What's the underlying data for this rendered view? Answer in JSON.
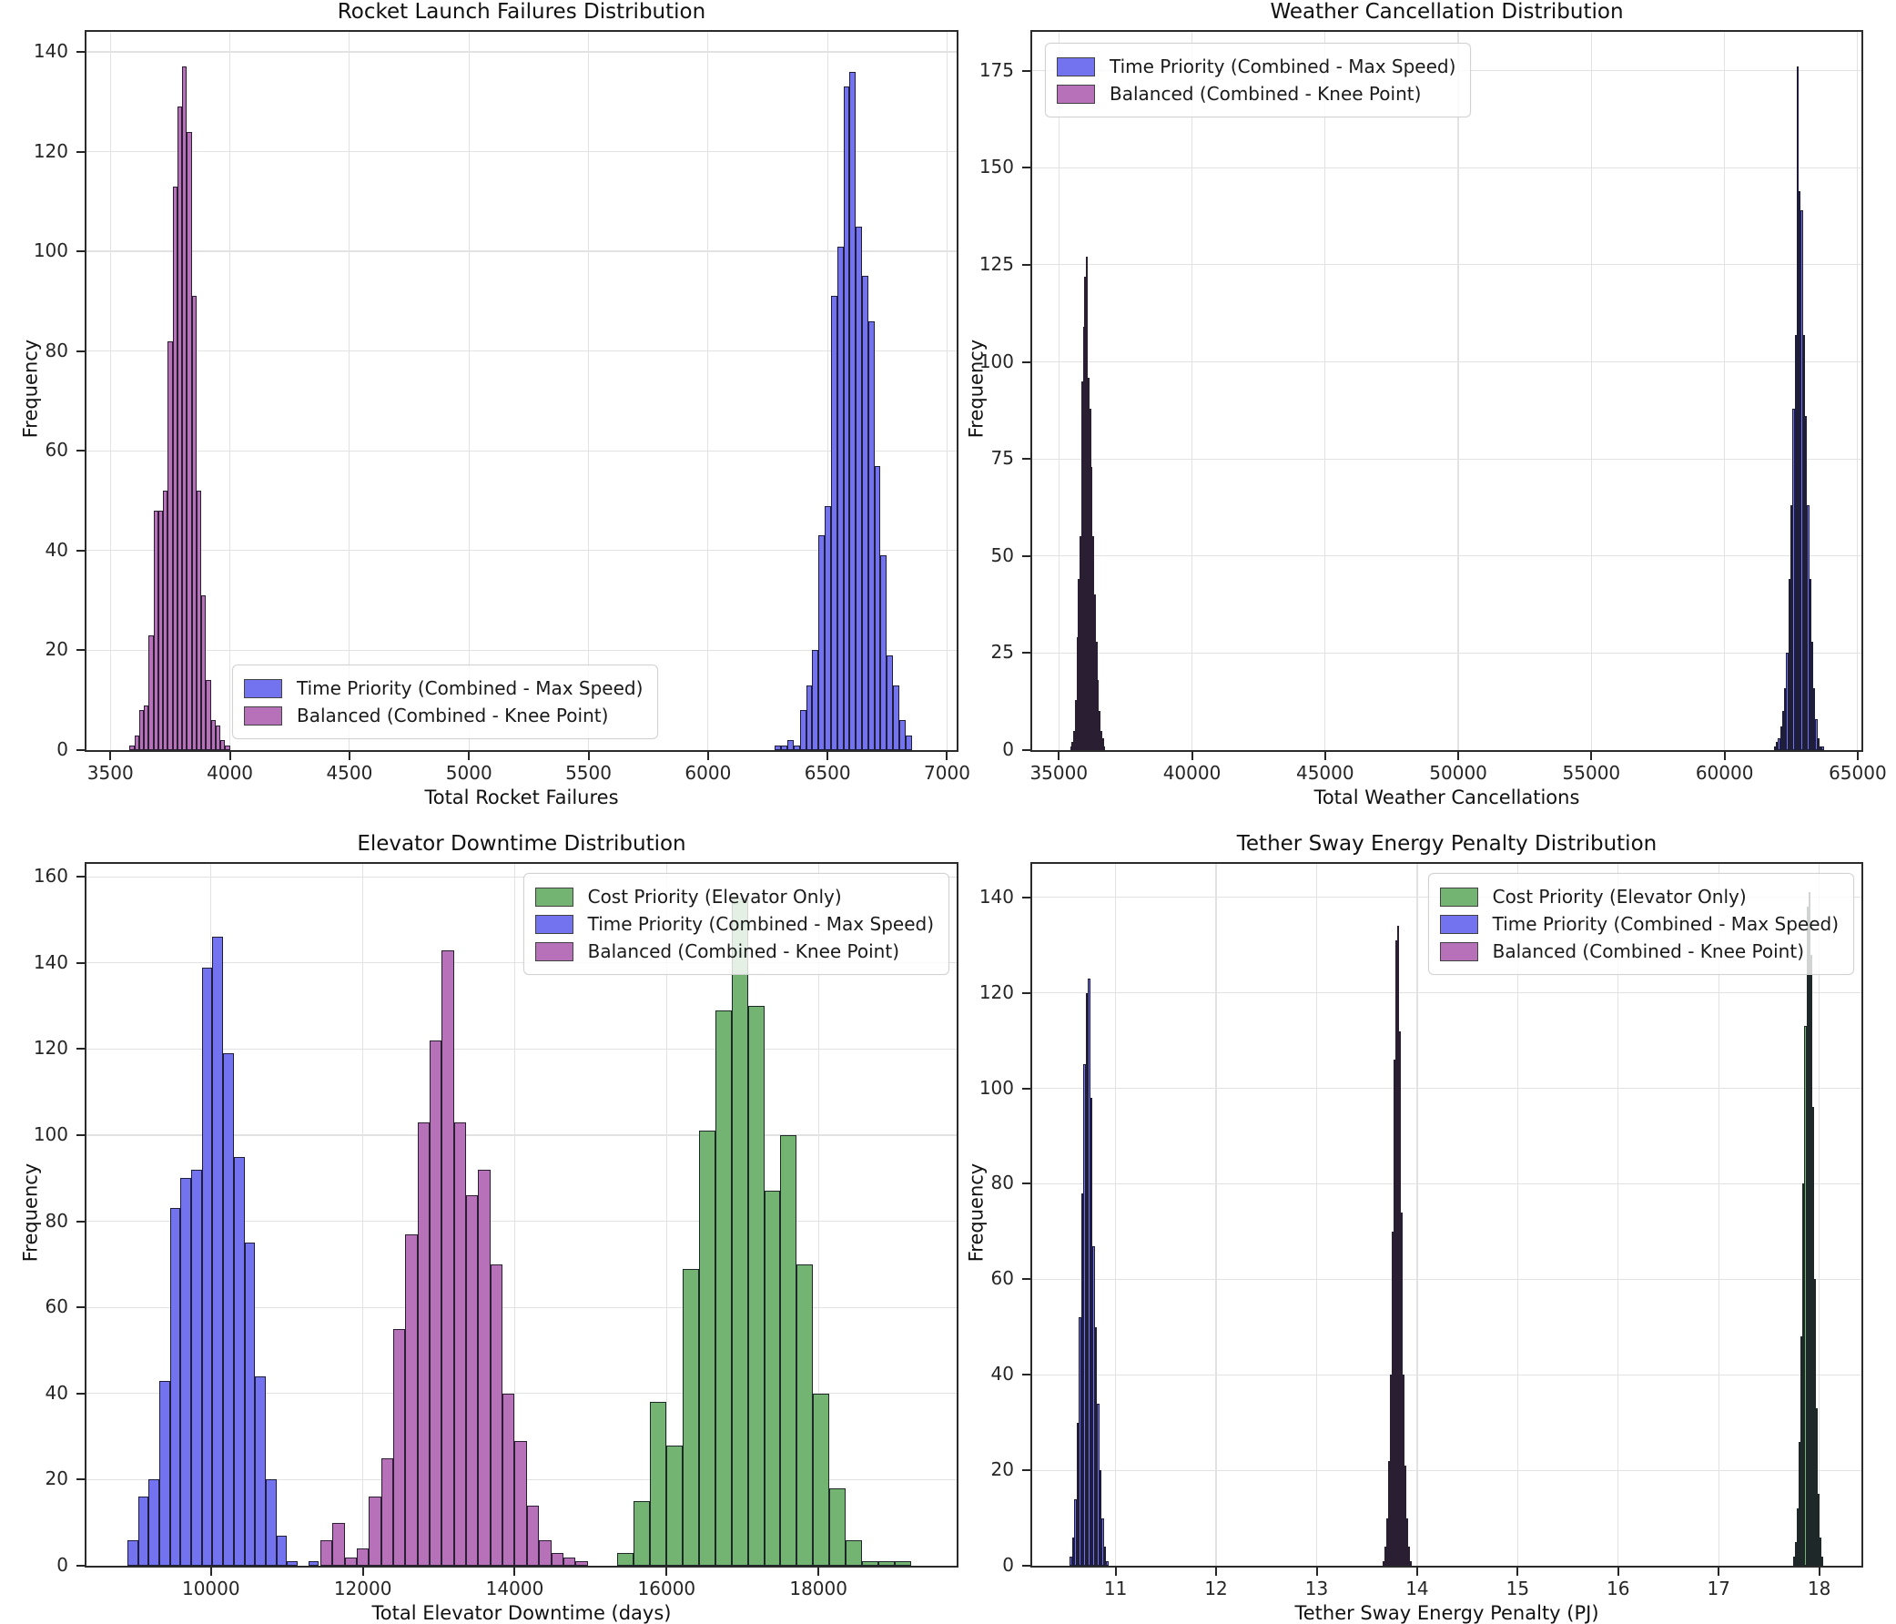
{
  "colors": {
    "blue": "#7372ef",
    "purple": "#b671b9",
    "green": "#73b473",
    "edge": "rgba(18,16,28,0.86)",
    "grid": "#e2e2e2",
    "spine": "#2b2b2b",
    "text": "#1a1a1a"
  },
  "chart_data": [
    {
      "type": "bar",
      "subtype": "histogram",
      "title": "Rocket Launch Failures Distribution",
      "xlabel": "Total Rocket Failures",
      "ylabel": "Frequency",
      "xlim": [
        3400,
        7040
      ],
      "ylim": [
        0,
        144
      ],
      "xticks": [
        3500,
        4000,
        4500,
        5000,
        5500,
        6000,
        6500,
        7000
      ],
      "yticks": [
        0,
        20,
        40,
        60,
        80,
        100,
        120,
        140
      ],
      "grid": true,
      "legend_position": "lower center",
      "legend": [
        {
          "label": "Time Priority (Combined - Max Speed)",
          "color": "blue"
        },
        {
          "label": "Balanced (Combined - Knee Point)",
          "color": "purple"
        }
      ],
      "series": [
        {
          "name": "Balanced (Combined - Knee Point)",
          "color": "purple",
          "bin_start": 3580,
          "bin_width": 20,
          "counts": [
            1,
            3,
            8,
            9,
            23,
            48,
            48,
            52,
            82,
            113,
            129,
            137,
            124,
            91,
            52,
            31,
            14,
            6,
            5,
            2,
            1
          ]
        },
        {
          "name": "Time Priority (Combined - Max Speed)",
          "color": "blue",
          "bin_start": 6280,
          "bin_width": 26,
          "counts": [
            1,
            1,
            2,
            1,
            8,
            13,
            20,
            43,
            49,
            91,
            101,
            133,
            136,
            105,
            95,
            86,
            57,
            39,
            19,
            13,
            6,
            3
          ]
        }
      ]
    },
    {
      "type": "bar",
      "subtype": "histogram",
      "title": "Weather Cancellation Distribution",
      "xlabel": "Total Weather Cancellations",
      "ylabel": "Frequency",
      "xlim": [
        34000,
        65140
      ],
      "ylim": [
        0,
        185
      ],
      "xticks": [
        35000,
        40000,
        45000,
        50000,
        55000,
        60000,
        65000
      ],
      "yticks": [
        0,
        25,
        50,
        75,
        100,
        125,
        150,
        175
      ],
      "grid": true,
      "legend_position": "upper left",
      "legend": [
        {
          "label": "Time Priority (Combined - Max Speed)",
          "color": "blue"
        },
        {
          "label": "Balanced (Combined - Knee Point)",
          "color": "purple"
        }
      ],
      "series": [
        {
          "name": "Balanced (Combined - Knee Point)",
          "color": "purple",
          "bin_start": 35420,
          "bin_width": 60,
          "counts": [
            1,
            2,
            5,
            13,
            29,
            44,
            55,
            95,
            109,
            122,
            127,
            96,
            88,
            73,
            55,
            40,
            28,
            18,
            10,
            5,
            3,
            1
          ]
        },
        {
          "name": "Time Priority (Combined - Max Speed)",
          "color": "blue",
          "bin_start": 61850,
          "bin_width": 78,
          "counts": [
            1,
            2,
            3,
            6,
            10,
            16,
            25,
            44,
            63,
            88,
            107,
            176,
            144,
            139,
            107,
            86,
            63,
            44,
            28,
            16,
            8,
            3,
            1,
            1
          ]
        }
      ]
    },
    {
      "type": "bar",
      "subtype": "histogram",
      "title": "Elevator Downtime Distribution",
      "xlabel": "Total Elevator Downtime (days)",
      "ylabel": "Frequency",
      "xlim": [
        8360,
        19820
      ],
      "ylim": [
        0,
        163
      ],
      "xticks": [
        10000,
        12000,
        14000,
        16000,
        18000
      ],
      "yticks": [
        0,
        20,
        40,
        60,
        80,
        100,
        120,
        140,
        160
      ],
      "grid": true,
      "legend_position": "upper right",
      "legend": [
        {
          "label": "Cost Priority (Elevator Only)",
          "color": "green"
        },
        {
          "label": "Time Priority (Combined - Max Speed)",
          "color": "blue"
        },
        {
          "label": "Balanced (Combined - Knee Point)",
          "color": "purple"
        }
      ],
      "series": [
        {
          "name": "Time Priority (Combined - Max Speed)",
          "color": "blue",
          "bin_start": 8900,
          "bin_width": 140,
          "counts": [
            6,
            16,
            20,
            43,
            83,
            90,
            92,
            139,
            146,
            119,
            95,
            75,
            44,
            20,
            7,
            1,
            0,
            1
          ]
        },
        {
          "name": "Balanced (Combined - Knee Point)",
          "color": "purple",
          "bin_start": 11440,
          "bin_width": 160,
          "counts": [
            6,
            10,
            2,
            4,
            16,
            25,
            55,
            77,
            103,
            122,
            143,
            103,
            86,
            92,
            70,
            40,
            29,
            14,
            6,
            3,
            2,
            1
          ]
        },
        {
          "name": "Cost Priority (Elevator Only)",
          "color": "green",
          "bin_start": 15350,
          "bin_width": 215,
          "counts": [
            3,
            15,
            38,
            28,
            69,
            101,
            129,
            155,
            130,
            87,
            100,
            70,
            40,
            18,
            6,
            1,
            1,
            1
          ]
        }
      ]
    },
    {
      "type": "bar",
      "subtype": "histogram",
      "title": "Tether Sway Energy Penalty Distribution",
      "xlabel": "Tether Sway Energy Penalty (PJ)",
      "ylabel": "Frequency",
      "xlim": [
        10.17,
        18.42
      ],
      "ylim": [
        0,
        147
      ],
      "xticks": [
        11,
        12,
        13,
        14,
        15,
        16,
        17,
        18
      ],
      "yticks": [
        0,
        20,
        40,
        60,
        80,
        100,
        120,
        140
      ],
      "grid": true,
      "legend_position": "upper right",
      "legend": [
        {
          "label": "Cost Priority (Elevator Only)",
          "color": "green"
        },
        {
          "label": "Time Priority (Combined - Max Speed)",
          "color": "blue"
        },
        {
          "label": "Balanced (Combined - Knee Point)",
          "color": "purple"
        }
      ],
      "series": [
        {
          "name": "Time Priority (Combined - Max Speed)",
          "color": "blue",
          "bin_start": 10.545,
          "bin_width": 0.0225,
          "counts": [
            2,
            6,
            14,
            30,
            52,
            78,
            105,
            120,
            123,
            98,
            67,
            50,
            34,
            20,
            10,
            4,
            1
          ]
        },
        {
          "name": "Balanced (Combined - Knee Point)",
          "color": "purple",
          "bin_start": 13.655,
          "bin_width": 0.018,
          "counts": [
            1,
            4,
            10,
            22,
            40,
            70,
            106,
            131,
            134,
            112,
            74,
            40,
            21,
            10,
            4,
            1
          ]
        },
        {
          "name": "Cost Priority (Elevator Only)",
          "color": "green",
          "bin_start": 17.74,
          "bin_width": 0.019,
          "counts": [
            2,
            5,
            12,
            26,
            48,
            80,
            113,
            138,
            141,
            128,
            96,
            60,
            33,
            15,
            6,
            2
          ]
        }
      ]
    }
  ]
}
